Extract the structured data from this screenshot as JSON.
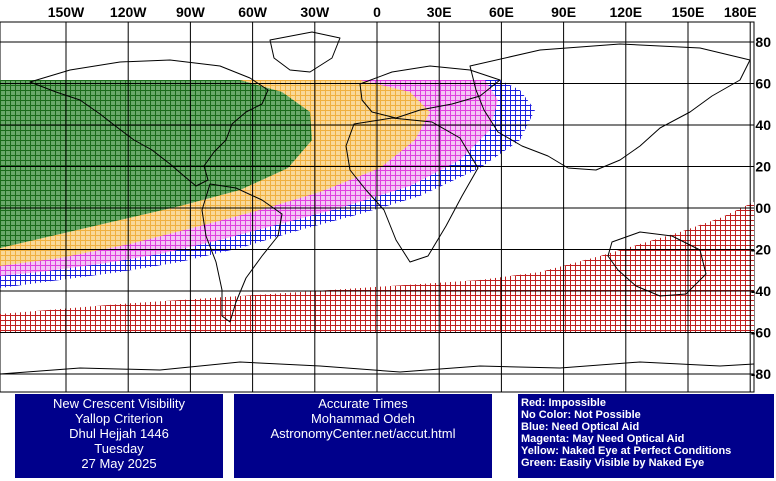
{
  "map": {
    "lon_labels": [
      "150W",
      "120W",
      "90W",
      "60W",
      "30W",
      "0",
      "30E",
      "60E",
      "90E",
      "120E",
      "150E",
      "180E"
    ],
    "lat_labels": [
      "80",
      "60",
      "40",
      "20",
      "00",
      "-20",
      "-40",
      "-60",
      "-80"
    ],
    "colors": {
      "red": "#c02020",
      "blue": "#2020e0",
      "magenta": "#e040e0",
      "yellow": "#f5b942",
      "green": "#1a7a1a",
      "land_outline": "#000000",
      "grid": "#000000"
    }
  },
  "title_box": {
    "lines": [
      "New Crescent Visibility",
      "Yallop Criterion",
      "Dhul Hejjah 1446",
      "Tuesday",
      "27 May 2025"
    ]
  },
  "credit_box": {
    "lines": [
      "Accurate Times",
      "Mohammad Odeh",
      "AstronomyCenter.net/accut.html"
    ]
  },
  "legend_box": {
    "lines": [
      "Red: Impossible",
      "No Color: Not Possible",
      "Blue: Need Optical Aid",
      "Magenta: May Need Optical Aid",
      "Yellow: Naked Eye at Perfect Conditions",
      "Green: Easily Visible by Naked Eye"
    ]
  }
}
